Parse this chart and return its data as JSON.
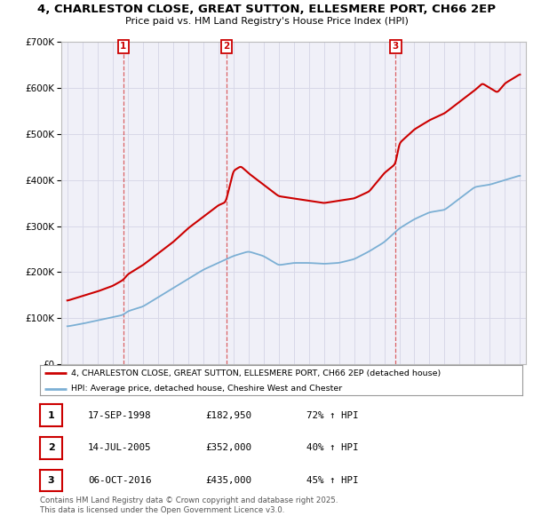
{
  "title": "4, CHARLESTON CLOSE, GREAT SUTTON, ELLESMERE PORT, CH66 2EP",
  "subtitle": "Price paid vs. HM Land Registry's House Price Index (HPI)",
  "legend_line1": "4, CHARLESTON CLOSE, GREAT SUTTON, ELLESMERE PORT, CH66 2EP (detached house)",
  "legend_line2": "HPI: Average price, detached house, Cheshire West and Chester",
  "transactions": [
    {
      "label": "1",
      "date_year": 1998.708,
      "price": 182950,
      "hpi_pct": "72% ↑ HPI",
      "display_date": "17-SEP-1998"
    },
    {
      "label": "2",
      "date_year": 2005.536,
      "price": 352000,
      "hpi_pct": "40% ↑ HPI",
      "display_date": "14-JUL-2005"
    },
    {
      "label": "3",
      "date_year": 2016.758,
      "price": 435000,
      "hpi_pct": "45% ↑ HPI",
      "display_date": "06-OCT-2016"
    }
  ],
  "footer_line1": "Contains HM Land Registry data © Crown copyright and database right 2025.",
  "footer_line2": "This data is licensed under the Open Government Licence v3.0.",
  "red_color": "#cc0000",
  "blue_color": "#7bafd4",
  "grid_color": "#d8d8e8",
  "ylim": [
    0,
    700000
  ],
  "yticks": [
    0,
    100000,
    200000,
    300000,
    400000,
    500000,
    600000,
    700000
  ],
  "xlim_start": 1994.6,
  "xlim_end": 2025.4,
  "bg_color": "#ffffff",
  "plot_bg_color": "#f0f0f8",
  "hpi_points_x": [
    1995,
    1996,
    1997,
    1998,
    1998.7,
    1999,
    2000,
    2001,
    2002,
    2003,
    2004,
    2005,
    2006,
    2007,
    2008,
    2009,
    2010,
    2011,
    2012,
    2013,
    2014,
    2015,
    2016,
    2017,
    2018,
    2019,
    2020,
    2021,
    2022,
    2023,
    2024,
    2025
  ],
  "hpi_points_y": [
    82000,
    88000,
    95000,
    102000,
    107000,
    115000,
    125000,
    145000,
    165000,
    185000,
    205000,
    220000,
    235000,
    245000,
    235000,
    215000,
    220000,
    220000,
    218000,
    220000,
    228000,
    245000,
    265000,
    295000,
    315000,
    330000,
    335000,
    360000,
    385000,
    390000,
    400000,
    410000
  ],
  "price_points_x": [
    1995,
    1996,
    1997,
    1998,
    1998.7,
    1999,
    2000,
    2001,
    2002,
    2003,
    2004,
    2005,
    2005.5,
    2006,
    2006.5,
    2007,
    2008,
    2009,
    2010,
    2011,
    2012,
    2013,
    2014,
    2015,
    2016,
    2016.75,
    2017,
    2018,
    2019,
    2020,
    2021,
    2022,
    2022.5,
    2023,
    2023.5,
    2024,
    2024.5,
    2025
  ],
  "price_points_y": [
    138000,
    148000,
    158000,
    170000,
    182950,
    195000,
    215000,
    240000,
    265000,
    295000,
    320000,
    345000,
    352000,
    420000,
    430000,
    415000,
    390000,
    365000,
    360000,
    355000,
    350000,
    355000,
    360000,
    375000,
    415000,
    435000,
    480000,
    510000,
    530000,
    545000,
    570000,
    595000,
    610000,
    600000,
    590000,
    610000,
    620000,
    630000
  ]
}
